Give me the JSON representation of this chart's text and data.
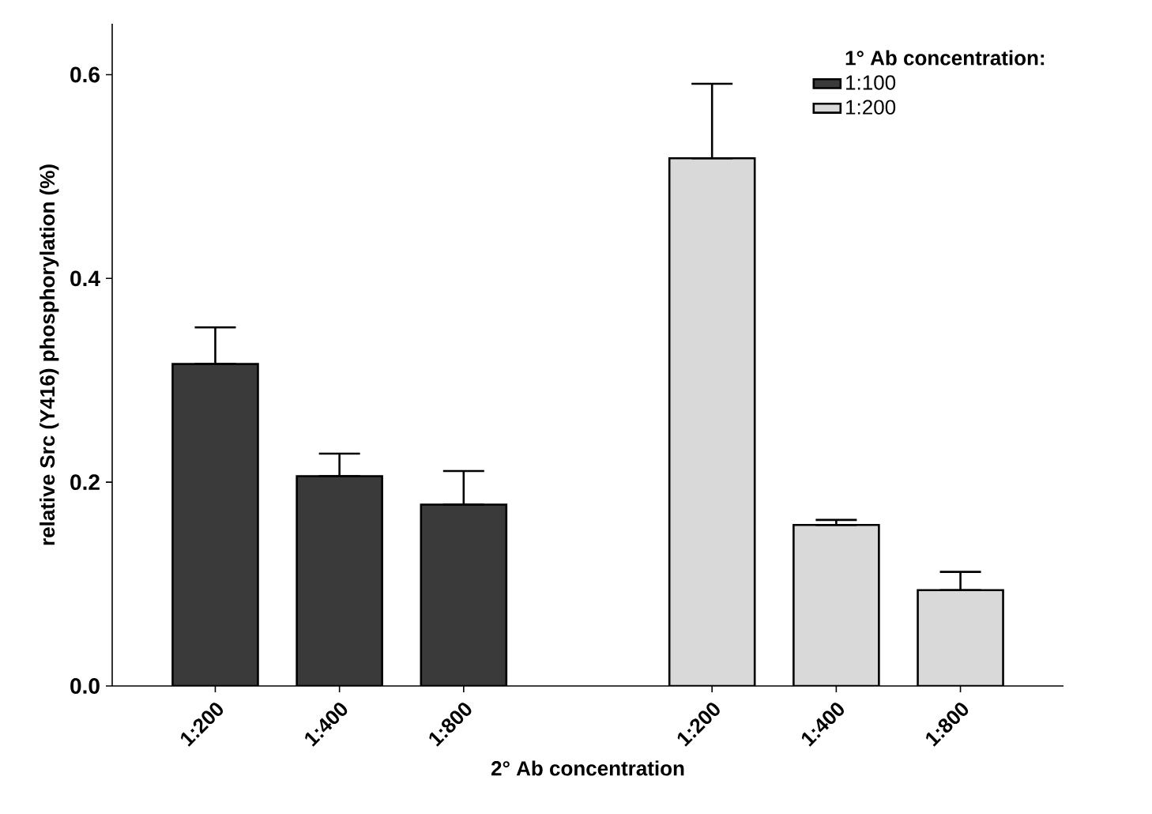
{
  "chart_data": {
    "type": "bar",
    "xlabel": "2° Ab concentration",
    "ylabel": "relative Src (Y416) phosphorylation (%)",
    "legend_title": "1° Ab concentration:",
    "legend": "top right",
    "categories": [
      "1:200",
      "1:400",
      "1:800",
      null,
      "1:200",
      "1:400",
      "1:800"
    ],
    "ylim": [
      0,
      0.65
    ],
    "yticks": [
      {
        "value": 0,
        "label": "0.0"
      },
      0.2,
      0.4,
      0.6
    ],
    "series": [
      {
        "name": "1:100",
        "color": "#3a3a3a",
        "values": [
          0.316,
          0.206,
          0.178,
          null,
          null,
          null,
          null
        ],
        "errors": [
          [
            0.316,
            0.352
          ],
          [
            0.206,
            0.228
          ],
          [
            0.178,
            0.211
          ],
          null,
          null,
          null,
          null
        ]
      },
      {
        "name": "1:200",
        "color": "#d9d9d9",
        "values": [
          null,
          null,
          null,
          null,
          0.518,
          0.158,
          0.094
        ],
        "errors": [
          null,
          null,
          null,
          null,
          [
            0.518,
            0.591
          ],
          [
            0.158,
            0.163
          ],
          [
            0.094,
            0.112
          ]
        ]
      }
    ]
  }
}
